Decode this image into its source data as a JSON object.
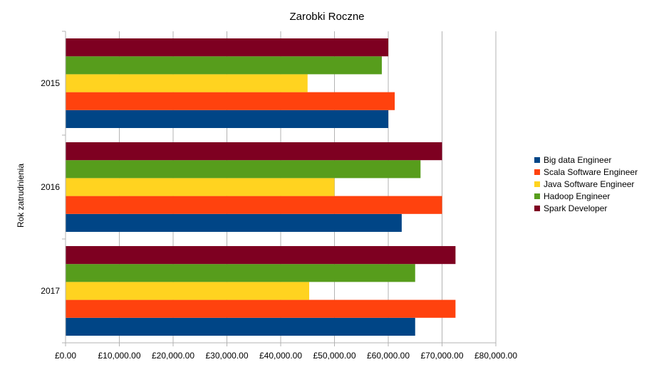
{
  "chart_data": {
    "type": "bar",
    "orientation": "horizontal",
    "title": "Zarobki Roczne",
    "ylabel": "Rok zatrudnienia",
    "xlabel": "",
    "categories": [
      "2015",
      "2016",
      "2017"
    ],
    "series": [
      {
        "name": "Big data Engineer",
        "color": "#004586",
        "values": [
          60000,
          62500,
          65000
        ]
      },
      {
        "name": "Scala Software Engineer",
        "color": "#ff420e",
        "values": [
          61200,
          70000,
          72500
        ]
      },
      {
        "name": "Java Software Engineer",
        "color": "#ffd320",
        "values": [
          45000,
          50000,
          45300
        ]
      },
      {
        "name": "Hadoop Engineer",
        "color": "#579d1c",
        "values": [
          58800,
          66000,
          65000
        ]
      },
      {
        "name": "Spark Developer",
        "color": "#7e0021",
        "values": [
          60000,
          70000,
          72500
        ]
      }
    ],
    "xlim": [
      0,
      80000
    ],
    "xticks": [
      0,
      10000,
      20000,
      30000,
      40000,
      50000,
      60000,
      70000,
      80000
    ],
    "xtick_labels": [
      "£0.00",
      "£10,000.00",
      "£20,000.00",
      "£30,000.00",
      "£40,000.00",
      "£50,000.00",
      "£60,000.00",
      "£70,000.00",
      "£80,000.00"
    ],
    "grid": true,
    "legend_position": "right"
  }
}
